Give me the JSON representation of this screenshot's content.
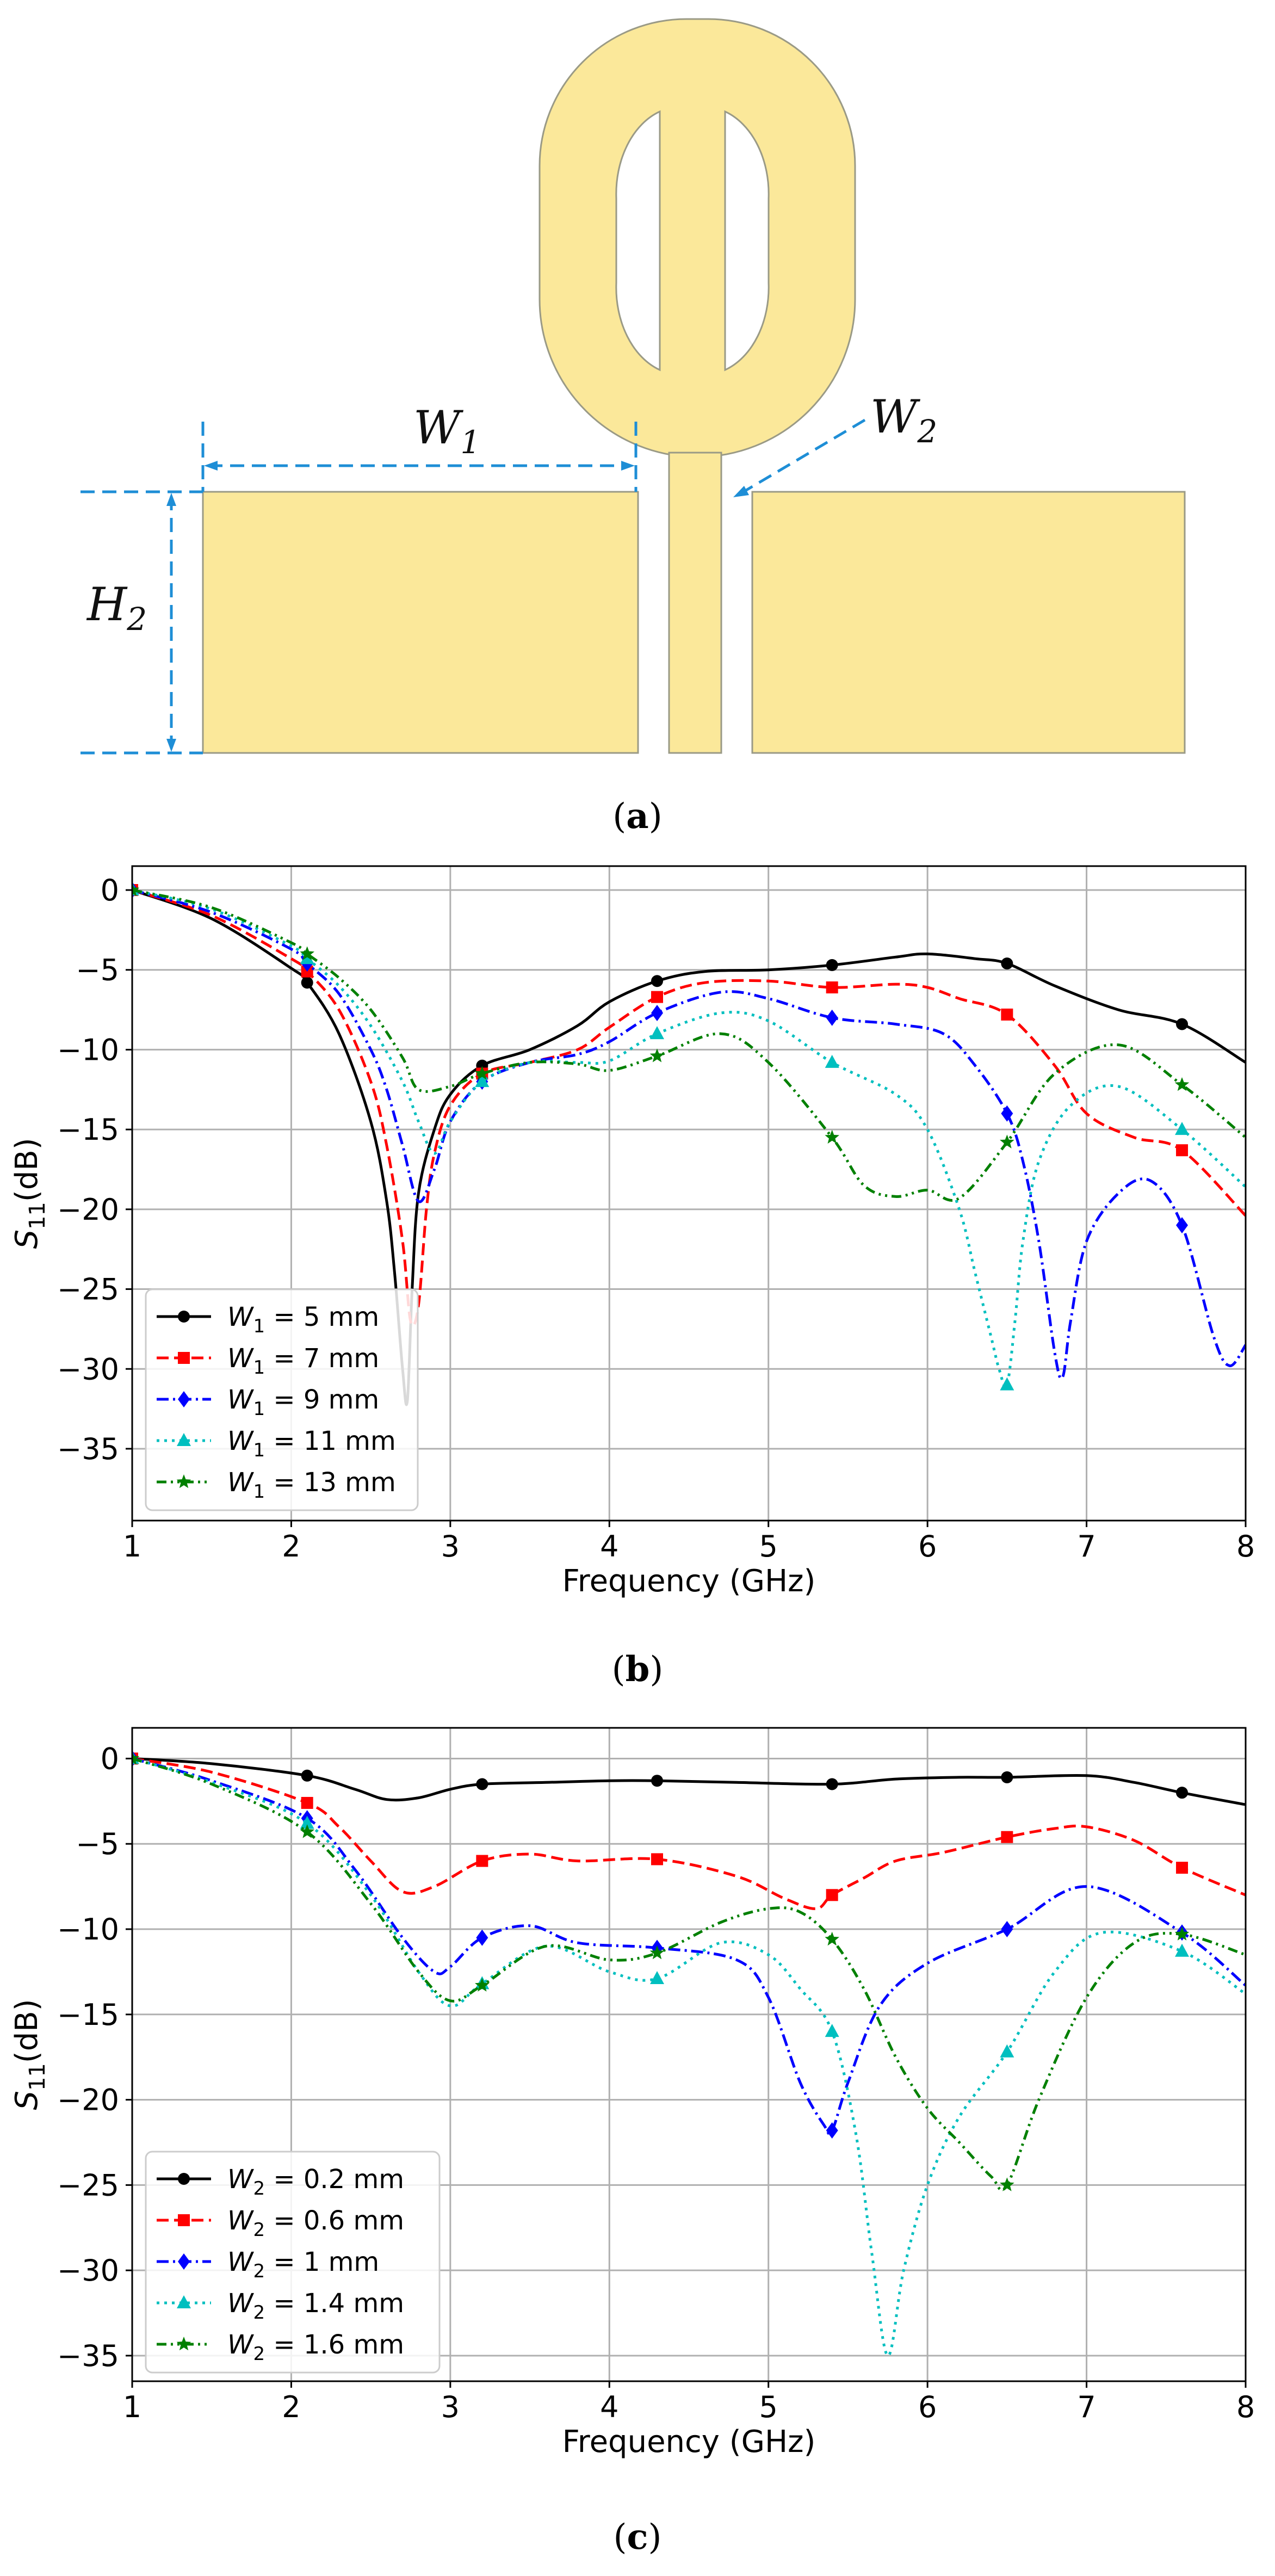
{
  "panel_a": {
    "caption_letter": "a",
    "labels": {
      "w1": "W",
      "w1_sub": "1",
      "w2": "W",
      "w2_sub": "2",
      "h2": "H",
      "h2_sub": "2"
    },
    "colors": {
      "metal": "#fbe89a",
      "metal_edge": "#9a9a86",
      "dim": "#1e8ed6"
    }
  },
  "chart_data": [
    {
      "type": "line",
      "panel": "b",
      "caption_letter": "b",
      "xlabel": "Frequency (GHz)",
      "ylabel": "S",
      "ylabel_sub": "11",
      "ylabel_suffix": "(dB)",
      "xlim": [
        1,
        8
      ],
      "ylim": [
        -39.5,
        1.5
      ],
      "xticks": [
        1,
        2,
        3,
        4,
        5,
        6,
        7,
        8
      ],
      "yticks": [
        0,
        -5,
        -10,
        -15,
        -20,
        -25,
        -30,
        -35
      ],
      "grid": true,
      "legend_position": "lower-left",
      "markers_x": [
        1,
        2.1,
        3.2,
        4.3,
        5.4,
        6.5,
        7.6
      ],
      "series": [
        {
          "name": "W1 = 5 mm",
          "legend_var": "W",
          "legend_sub": "1",
          "legend_rest": " = 5 mm",
          "color": "#000000",
          "dash": "",
          "marker": "circle",
          "x": [
            1,
            1.5,
            2,
            2.1,
            2.3,
            2.5,
            2.6,
            2.65,
            2.7,
            2.73,
            2.76,
            2.8,
            2.9,
            3.0,
            3.2,
            3.5,
            3.8,
            4.0,
            4.3,
            4.6,
            5.0,
            5.4,
            5.8,
            6.0,
            6.3,
            6.5,
            6.8,
            7.2,
            7.6,
            8.0
          ],
          "y": [
            0,
            -1.8,
            -4.9,
            -5.8,
            -9,
            -14.5,
            -19.5,
            -24,
            -30,
            -32,
            -25,
            -19,
            -15,
            -12.8,
            -11,
            -10,
            -8.5,
            -7,
            -5.7,
            -5.1,
            -5.0,
            -4.7,
            -4.2,
            -4.0,
            -4.3,
            -4.6,
            -6.0,
            -7.5,
            -8.4,
            -10.8
          ]
        },
        {
          "name": "W1 = 7 mm",
          "legend_var": "W",
          "legend_sub": "1",
          "legend_rest": " = 7 mm",
          "color": "#ff0000",
          "dash": "22,10",
          "marker": "square",
          "x": [
            1,
            1.5,
            2,
            2.1,
            2.3,
            2.5,
            2.6,
            2.7,
            2.75,
            2.8,
            2.85,
            2.9,
            3.0,
            3.2,
            3.5,
            3.8,
            4.0,
            4.3,
            4.6,
            5.0,
            5.4,
            5.8,
            6.0,
            6.2,
            6.5,
            6.8,
            7.0,
            7.3,
            7.6,
            8.0
          ],
          "y": [
            0,
            -1.6,
            -4.3,
            -5.1,
            -7.5,
            -12,
            -16,
            -22,
            -27,
            -26,
            -20,
            -16.5,
            -13.5,
            -11.5,
            -10.8,
            -10,
            -8.6,
            -6.7,
            -5.8,
            -5.7,
            -6.1,
            -5.9,
            -6.1,
            -6.8,
            -7.8,
            -11,
            -14,
            -15.5,
            -16.3,
            -20.4
          ]
        },
        {
          "name": "W1 = 9 mm",
          "legend_var": "W",
          "legend_sub": "1",
          "legend_rest": " = 9 mm",
          "color": "#0000ff",
          "dash": "22,8,4,8",
          "marker": "diamond",
          "x": [
            1,
            1.5,
            2,
            2.1,
            2.3,
            2.5,
            2.6,
            2.7,
            2.8,
            2.9,
            3.0,
            3.2,
            3.5,
            3.8,
            4.0,
            4.3,
            4.7,
            5.0,
            5.4,
            5.8,
            6.1,
            6.3,
            6.5,
            6.6,
            6.7,
            6.8,
            6.85,
            6.9,
            7.0,
            7.2,
            7.4,
            7.6,
            7.8,
            7.9,
            8.0
          ],
          "y": [
            0,
            -1.4,
            -3.7,
            -4.6,
            -6.5,
            -10,
            -12.5,
            -16,
            -19.5,
            -17.5,
            -14.5,
            -12,
            -10.8,
            -10.3,
            -9.5,
            -7.7,
            -6.4,
            -6.8,
            -8.0,
            -8.4,
            -9.0,
            -11,
            -14,
            -17,
            -22,
            -29,
            -30.5,
            -27,
            -22,
            -19,
            -18.2,
            -21,
            -28,
            -29.8,
            -28.5
          ]
        },
        {
          "name": "W1 = 11 mm",
          "legend_var": "W",
          "legend_sub": "1",
          "legend_rest": " = 11 mm",
          "color": "#00bfbf",
          "dash": "5,9",
          "marker": "triangle",
          "x": [
            1,
            1.5,
            2,
            2.1,
            2.3,
            2.5,
            2.7,
            2.8,
            2.9,
            3.0,
            3.2,
            3.5,
            3.8,
            4.0,
            4.3,
            4.7,
            5.0,
            5.4,
            5.8,
            6.0,
            6.2,
            6.3,
            6.4,
            6.45,
            6.5,
            6.55,
            6.6,
            6.7,
            6.9,
            7.2,
            7.6,
            8.0
          ],
          "y": [
            0,
            -1.2,
            -3.5,
            -4.3,
            -6,
            -8.5,
            -12,
            -14.5,
            -16.5,
            -14.5,
            -12,
            -10.8,
            -10.8,
            -10.7,
            -9.0,
            -7.7,
            -8.2,
            -10.8,
            -12.8,
            -15,
            -20,
            -24,
            -28,
            -30,
            -31,
            -27,
            -22,
            -17,
            -13.5,
            -12.3,
            -15,
            -18.6
          ]
        },
        {
          "name": "W1 = 13 mm",
          "legend_var": "W",
          "legend_sub": "1",
          "legend_rest": " = 13 mm",
          "color": "#008000",
          "dash": "18,8,4,8,4,8",
          "marker": "star",
          "x": [
            1,
            1.5,
            2,
            2.1,
            2.3,
            2.5,
            2.7,
            2.8,
            3.0,
            3.2,
            3.5,
            3.8,
            4.0,
            4.3,
            4.7,
            5.0,
            5.4,
            5.6,
            5.8,
            6.0,
            6.2,
            6.5,
            6.8,
            7.2,
            7.6,
            8.0
          ],
          "y": [
            0,
            -1.1,
            -3.3,
            -4.0,
            -5.5,
            -7.5,
            -10.5,
            -12.5,
            -12.3,
            -11.5,
            -10.8,
            -10.9,
            -11.3,
            -10.4,
            -9.0,
            -10.8,
            -15.5,
            -18.5,
            -19.2,
            -18.8,
            -19.3,
            -15.8,
            -11.5,
            -9.7,
            -12.2,
            -15.5
          ]
        }
      ]
    },
    {
      "type": "line",
      "panel": "c",
      "caption_letter": "c",
      "xlabel": "Frequency (GHz)",
      "ylabel": "S",
      "ylabel_sub": "11",
      "ylabel_suffix": "(dB)",
      "xlim": [
        1,
        8
      ],
      "ylim": [
        -36.5,
        1.8
      ],
      "xticks": [
        1,
        2,
        3,
        4,
        5,
        6,
        7,
        8
      ],
      "yticks": [
        0,
        -5,
        -10,
        -15,
        -20,
        -25,
        -30,
        -35
      ],
      "grid": true,
      "legend_position": "lower-left",
      "markers_x": [
        1,
        2.1,
        3.2,
        4.3,
        5.4,
        6.5,
        7.6
      ],
      "series": [
        {
          "name": "W2 = 0.2 mm",
          "legend_var": "W",
          "legend_sub": "2",
          "legend_rest": " = 0.2 mm",
          "color": "#000000",
          "dash": "",
          "marker": "circle",
          "x": [
            1,
            1.5,
            2.1,
            2.4,
            2.6,
            2.8,
            3.0,
            3.2,
            3.6,
            4.0,
            4.3,
            4.8,
            5.4,
            5.8,
            6.2,
            6.5,
            7.0,
            7.3,
            7.6,
            8.0
          ],
          "y": [
            0,
            -0.3,
            -1.0,
            -1.8,
            -2.4,
            -2.3,
            -1.8,
            -1.5,
            -1.4,
            -1.3,
            -1.3,
            -1.4,
            -1.5,
            -1.2,
            -1.1,
            -1.1,
            -1.0,
            -1.4,
            -2.0,
            -2.7
          ]
        },
        {
          "name": "W2 = 0.6 mm",
          "legend_var": "W",
          "legend_sub": "2",
          "legend_rest": " = 0.6 mm",
          "color": "#ff0000",
          "dash": "22,10",
          "marker": "square",
          "x": [
            1,
            1.5,
            2.1,
            2.3,
            2.5,
            2.7,
            2.9,
            3.2,
            3.5,
            3.8,
            4.3,
            4.8,
            5.1,
            5.3,
            5.4,
            5.6,
            5.8,
            6.1,
            6.5,
            6.8,
            7.0,
            7.3,
            7.6,
            8.0
          ],
          "y": [
            0,
            -0.8,
            -2.6,
            -4,
            -6,
            -7.8,
            -7.5,
            -6.0,
            -5.6,
            -6.0,
            -5.9,
            -6.9,
            -8.2,
            -8.8,
            -8.0,
            -7.0,
            -6.0,
            -5.5,
            -4.6,
            -4.1,
            -4.0,
            -4.8,
            -6.4,
            -8.0
          ]
        },
        {
          "name": "W2 = 1 mm",
          "legend_var": "W",
          "legend_sub": "2",
          "legend_rest": " = 1 mm",
          "color": "#0000ff",
          "dash": "22,8,4,8",
          "marker": "diamond",
          "x": [
            1,
            1.5,
            2.1,
            2.4,
            2.7,
            2.9,
            3.0,
            3.2,
            3.5,
            3.8,
            4.3,
            4.8,
            5.0,
            5.2,
            5.35,
            5.4,
            5.5,
            5.7,
            6.0,
            6.5,
            7.0,
            7.6,
            8.0
          ],
          "y": [
            0,
            -1.3,
            -3.5,
            -6.5,
            -10.5,
            -12.5,
            -12.2,
            -10.5,
            -9.8,
            -10.8,
            -11.1,
            -11.8,
            -14,
            -19,
            -21.5,
            -21.8,
            -19,
            -14.5,
            -12,
            -10.0,
            -7.5,
            -10.2,
            -13.3
          ]
        },
        {
          "name": "W2 = 1.4 mm",
          "legend_var": "W",
          "legend_sub": "2",
          "legend_rest": " = 1.4 mm",
          "color": "#00bfbf",
          "dash": "5,9",
          "marker": "triangle",
          "x": [
            1,
            1.5,
            2.1,
            2.5,
            2.8,
            3.0,
            3.2,
            3.6,
            4.0,
            4.3,
            4.7,
            5.0,
            5.2,
            5.4,
            5.55,
            5.65,
            5.75,
            5.85,
            6.0,
            6.2,
            6.5,
            6.8,
            7.1,
            7.6,
            8.0
          ],
          "y": [
            0,
            -1.4,
            -3.8,
            -8,
            -12.5,
            -14.5,
            -13.2,
            -11,
            -12.5,
            -12.9,
            -10.8,
            -11.5,
            -13.5,
            -16.0,
            -22,
            -29,
            -35,
            -30,
            -25,
            -21,
            -17.2,
            -12.5,
            -10.2,
            -11.3,
            -13.8
          ]
        },
        {
          "name": "W2 = 1.6 mm",
          "legend_var": "W",
          "legend_sub": "2",
          "legend_rest": " = 1.6 mm",
          "color": "#008000",
          "dash": "18,8,4,8,4,8",
          "marker": "star",
          "x": [
            1,
            1.5,
            2.1,
            2.5,
            2.8,
            3.0,
            3.2,
            3.6,
            4.0,
            4.3,
            4.7,
            5.0,
            5.2,
            5.4,
            5.6,
            5.8,
            6.0,
            6.2,
            6.4,
            6.5,
            6.7,
            7.0,
            7.3,
            7.6,
            8.0
          ],
          "y": [
            0,
            -1.5,
            -4.3,
            -8.5,
            -12.5,
            -14.2,
            -13.3,
            -11.0,
            -11.8,
            -11.4,
            -9.6,
            -8.8,
            -9.0,
            -10.6,
            -13.5,
            -17.5,
            -20.5,
            -22.5,
            -24.5,
            -25.0,
            -20,
            -14,
            -10.8,
            -10.3,
            -11.5
          ]
        }
      ]
    }
  ]
}
